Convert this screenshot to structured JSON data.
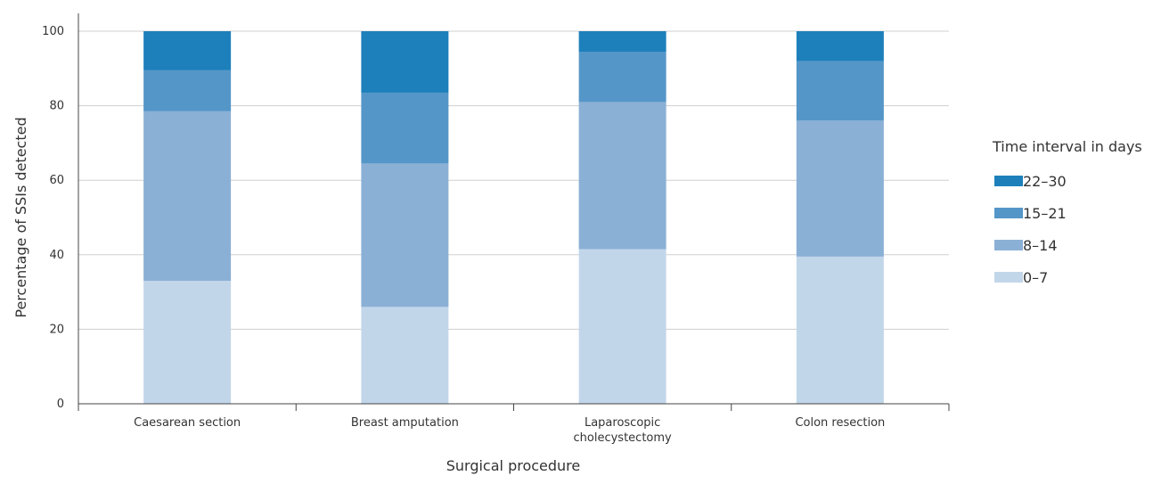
{
  "chart_data": {
    "type": "bar",
    "stacked": true,
    "title": "",
    "xlabel": "Surgical procedure",
    "ylabel": "Percentage of SSIs detected",
    "ylim": [
      0,
      100
    ],
    "yticks": [
      0,
      20,
      40,
      60,
      80,
      100
    ],
    "grid": true,
    "legend_position": "right",
    "legend_title": "Time interval in days",
    "categories": [
      [
        "Caesarean section"
      ],
      [
        "Breast amputation"
      ],
      [
        "Laparoscopic",
        "cholecystectomy"
      ],
      [
        "Colon resection"
      ]
    ],
    "series": [
      {
        "name": "0–7",
        "color": "#c2d6ea",
        "values": [
          33,
          26,
          41.5,
          39.5
        ]
      },
      {
        "name": "8–14",
        "color": "#8bb0d5",
        "values": [
          45.5,
          38.5,
          39.5,
          36.5
        ]
      },
      {
        "name": "15–21",
        "color": "#5596c8",
        "values": [
          11,
          19,
          13.5,
          16
        ]
      },
      {
        "name": "22–30",
        "color": "#1d80bb",
        "values": [
          10.5,
          16.5,
          5.5,
          8
        ]
      }
    ]
  }
}
